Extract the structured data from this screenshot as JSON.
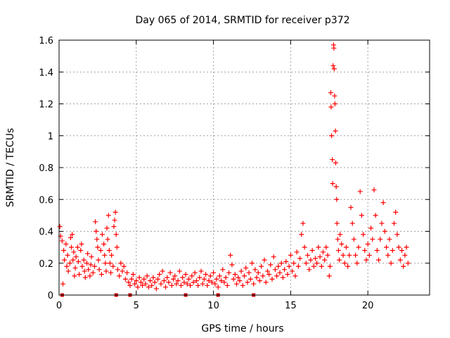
{
  "colors": {
    "series": "#ff0000",
    "zero_series": "#cc0000"
  },
  "chart_data": {
    "type": "scatter",
    "title": "Day 065 of 2014, SRMTID for receiver p372",
    "xlabel": "GPS time / hours",
    "ylabel": "SRMTID / TECUs",
    "xlim": [
      0,
      24
    ],
    "ylim": [
      0,
      1.6
    ],
    "x_ticks": [
      0,
      5,
      10,
      15,
      20
    ],
    "x_tick_labels": [
      "0",
      "5",
      "10",
      "15",
      "20"
    ],
    "y_ticks": [
      0,
      0.2,
      0.4,
      0.6,
      0.8,
      1.0,
      1.2,
      1.4,
      1.6
    ],
    "y_tick_labels": [
      "0",
      "0.2",
      "0.4",
      "0.6",
      "0.8",
      "1",
      "1.2",
      "1.4",
      "1.6"
    ],
    "grid": true,
    "marker": "plus",
    "series": [
      {
        "name": "SRMTID",
        "points": [
          [
            0.05,
            0.43
          ],
          [
            0.1,
            0.37
          ],
          [
            0.2,
            0.34
          ],
          [
            0.25,
            0.07
          ],
          [
            0.3,
            0.28
          ],
          [
            0.35,
            0.22
          ],
          [
            0.45,
            0.32
          ],
          [
            0.5,
            0.18
          ],
          [
            0.55,
            0.25
          ],
          [
            0.6,
            0.15
          ],
          [
            0.7,
            0.2
          ],
          [
            0.75,
            0.36
          ],
          [
            0.8,
            0.3
          ],
          [
            0.85,
            0.38
          ],
          [
            0.9,
            0.22
          ],
          [
            0.95,
            0.27
          ],
          [
            1.0,
            0.12
          ],
          [
            1.05,
            0.17
          ],
          [
            1.1,
            0.24
          ],
          [
            1.2,
            0.3
          ],
          [
            1.25,
            0.21
          ],
          [
            1.3,
            0.13
          ],
          [
            1.4,
            0.28
          ],
          [
            1.45,
            0.32
          ],
          [
            1.5,
            0.18
          ],
          [
            1.6,
            0.22
          ],
          [
            1.65,
            0.15
          ],
          [
            1.7,
            0.11
          ],
          [
            1.8,
            0.2
          ],
          [
            1.85,
            0.26
          ],
          [
            1.9,
            0.16
          ],
          [
            2.0,
            0.12
          ],
          [
            2.05,
            0.19
          ],
          [
            2.1,
            0.24
          ],
          [
            2.2,
            0.14
          ],
          [
            2.3,
            0.18
          ],
          [
            2.35,
            0.46
          ],
          [
            2.4,
            0.4
          ],
          [
            2.45,
            0.35
          ],
          [
            2.5,
            0.3
          ],
          [
            2.55,
            0.22
          ],
          [
            2.6,
            0.16
          ],
          [
            2.7,
            0.28
          ],
          [
            2.75,
            0.13
          ],
          [
            2.8,
            0.38
          ],
          [
            2.9,
            0.32
          ],
          [
            2.95,
            0.25
          ],
          [
            3.0,
            0.2
          ],
          [
            3.05,
            0.15
          ],
          [
            3.1,
            0.42
          ],
          [
            3.15,
            0.35
          ],
          [
            3.2,
            0.5
          ],
          [
            3.25,
            0.28
          ],
          [
            3.3,
            0.2
          ],
          [
            3.35,
            0.14
          ],
          [
            3.4,
            0.25
          ],
          [
            3.5,
            0.18
          ],
          [
            3.55,
            0.43
          ],
          [
            3.6,
            0.47
          ],
          [
            3.65,
            0.52
          ],
          [
            3.7,
            0.38
          ],
          [
            3.75,
            0.3
          ],
          [
            3.8,
            0.16
          ],
          [
            3.9,
            0.12
          ],
          [
            4.0,
            0.2
          ],
          [
            4.1,
            0.15
          ],
          [
            4.2,
            0.18
          ],
          [
            4.3,
            0.1
          ],
          [
            4.4,
            0.14
          ],
          [
            4.5,
            0.08
          ],
          [
            4.6,
            0.06
          ],
          [
            4.7,
            0.1
          ],
          [
            4.8,
            0.13
          ],
          [
            4.9,
            0.07
          ],
          [
            5.0,
            0.09
          ],
          [
            5.1,
            0.05
          ],
          [
            5.2,
            0.11
          ],
          [
            5.3,
            0.08
          ],
          [
            5.4,
            0.06
          ],
          [
            5.5,
            0.1
          ],
          [
            5.6,
            0.07
          ],
          [
            5.7,
            0.12
          ],
          [
            5.8,
            0.05
          ],
          [
            5.9,
            0.09
          ],
          [
            6.0,
            0.06
          ],
          [
            6.1,
            0.11
          ],
          [
            6.2,
            0.08
          ],
          [
            6.3,
            0.04
          ],
          [
            6.4,
            0.1
          ],
          [
            6.5,
            0.13
          ],
          [
            6.6,
            0.07
          ],
          [
            6.7,
            0.15
          ],
          [
            6.8,
            0.09
          ],
          [
            6.9,
            0.05
          ],
          [
            7.0,
            0.11
          ],
          [
            7.1,
            0.08
          ],
          [
            7.2,
            0.14
          ],
          [
            7.3,
            0.06
          ],
          [
            7.4,
            0.1
          ],
          [
            7.5,
            0.12
          ],
          [
            7.6,
            0.07
          ],
          [
            7.7,
            0.09
          ],
          [
            7.8,
            0.15
          ],
          [
            7.9,
            0.06
          ],
          [
            8.0,
            0.11
          ],
          [
            8.1,
            0.08
          ],
          [
            8.2,
            0.13
          ],
          [
            8.3,
            0.07
          ],
          [
            8.4,
            0.1
          ],
          [
            8.5,
            0.06
          ],
          [
            8.6,
            0.12
          ],
          [
            8.7,
            0.08
          ],
          [
            8.8,
            0.14
          ],
          [
            8.9,
            0.09
          ],
          [
            9.0,
            0.06
          ],
          [
            9.1,
            0.11
          ],
          [
            9.2,
            0.15
          ],
          [
            9.3,
            0.07
          ],
          [
            9.4,
            0.1
          ],
          [
            9.5,
            0.13
          ],
          [
            9.6,
            0.06
          ],
          [
            9.7,
            0.09
          ],
          [
            9.8,
            0.12
          ],
          [
            9.9,
            0.08
          ],
          [
            10.0,
            0.14
          ],
          [
            10.1,
            0.07
          ],
          [
            10.2,
            0.1
          ],
          [
            10.3,
            0.05
          ],
          [
            10.4,
            0.12
          ],
          [
            10.5,
            0.09
          ],
          [
            10.6,
            0.16
          ],
          [
            10.7,
            0.08
          ],
          [
            10.8,
            0.11
          ],
          [
            10.9,
            0.06
          ],
          [
            11.0,
            0.14
          ],
          [
            11.1,
            0.25
          ],
          [
            11.2,
            0.19
          ],
          [
            11.3,
            0.1
          ],
          [
            11.4,
            0.13
          ],
          [
            11.5,
            0.07
          ],
          [
            11.6,
            0.11
          ],
          [
            11.7,
            0.09
          ],
          [
            11.8,
            0.15
          ],
          [
            11.9,
            0.06
          ],
          [
            12.0,
            0.12
          ],
          [
            12.1,
            0.17
          ],
          [
            12.2,
            0.08
          ],
          [
            12.3,
            0.14
          ],
          [
            12.4,
            0.1
          ],
          [
            12.5,
            0.2
          ],
          [
            12.6,
            0.07
          ],
          [
            12.7,
            0.16
          ],
          [
            12.8,
            0.11
          ],
          [
            12.9,
            0.14
          ],
          [
            13.0,
            0.09
          ],
          [
            13.1,
            0.18
          ],
          [
            13.2,
            0.12
          ],
          [
            13.3,
            0.22
          ],
          [
            13.4,
            0.08
          ],
          [
            13.5,
            0.15
          ],
          [
            13.6,
            0.13
          ],
          [
            13.7,
            0.19
          ],
          [
            13.8,
            0.1
          ],
          [
            13.9,
            0.24
          ],
          [
            14.0,
            0.16
          ],
          [
            14.1,
            0.12
          ],
          [
            14.2,
            0.18
          ],
          [
            14.3,
            0.14
          ],
          [
            14.4,
            0.2
          ],
          [
            14.5,
            0.11
          ],
          [
            14.6,
            0.16
          ],
          [
            14.7,
            0.21
          ],
          [
            14.8,
            0.13
          ],
          [
            14.9,
            0.18
          ],
          [
            15.0,
            0.25
          ],
          [
            15.1,
            0.15
          ],
          [
            15.2,
            0.2
          ],
          [
            15.3,
            0.12
          ],
          [
            15.4,
            0.27
          ],
          [
            15.5,
            0.18
          ],
          [
            15.6,
            0.23
          ],
          [
            15.7,
            0.38
          ],
          [
            15.8,
            0.45
          ],
          [
            15.9,
            0.3
          ],
          [
            16.0,
            0.2
          ],
          [
            16.1,
            0.25
          ],
          [
            16.2,
            0.16
          ],
          [
            16.3,
            0.22
          ],
          [
            16.4,
            0.28
          ],
          [
            16.5,
            0.18
          ],
          [
            16.6,
            0.23
          ],
          [
            16.7,
            0.2
          ],
          [
            16.8,
            0.3
          ],
          [
            16.9,
            0.24
          ],
          [
            17.0,
            0.18
          ],
          [
            17.1,
            0.27
          ],
          [
            17.2,
            0.22
          ],
          [
            17.3,
            0.3
          ],
          [
            17.4,
            0.25
          ],
          [
            17.5,
            0.12
          ],
          [
            17.55,
            0.18
          ],
          [
            17.6,
            1.27
          ],
          [
            17.62,
            1.18
          ],
          [
            17.65,
            1.0
          ],
          [
            17.7,
            0.85
          ],
          [
            17.72,
            0.7
          ],
          [
            17.75,
            1.44
          ],
          [
            17.78,
            1.57
          ],
          [
            17.8,
            1.55
          ],
          [
            17.82,
            1.42
          ],
          [
            17.85,
            1.25
          ],
          [
            17.87,
            1.2
          ],
          [
            17.9,
            1.03
          ],
          [
            17.92,
            0.83
          ],
          [
            17.95,
            0.68
          ],
          [
            17.98,
            0.6
          ],
          [
            18.0,
            0.45
          ],
          [
            18.05,
            0.35
          ],
          [
            18.1,
            0.28
          ],
          [
            18.15,
            0.22
          ],
          [
            18.2,
            0.38
          ],
          [
            18.3,
            0.32
          ],
          [
            18.4,
            0.25
          ],
          [
            18.5,
            0.2
          ],
          [
            18.6,
            0.3
          ],
          [
            18.7,
            0.18
          ],
          [
            18.8,
            0.25
          ],
          [
            18.9,
            0.55
          ],
          [
            19.0,
            0.45
          ],
          [
            19.1,
            0.35
          ],
          [
            19.2,
            0.25
          ],
          [
            19.3,
            0.2
          ],
          [
            19.4,
            0.3
          ],
          [
            19.5,
            0.65
          ],
          [
            19.6,
            0.5
          ],
          [
            19.7,
            0.38
          ],
          [
            19.8,
            0.28
          ],
          [
            19.9,
            0.22
          ],
          [
            20.0,
            0.32
          ],
          [
            20.1,
            0.25
          ],
          [
            20.2,
            0.42
          ],
          [
            20.3,
            0.35
          ],
          [
            20.4,
            0.66
          ],
          [
            20.5,
            0.5
          ],
          [
            20.6,
            0.28
          ],
          [
            20.7,
            0.22
          ],
          [
            20.8,
            0.35
          ],
          [
            20.9,
            0.45
          ],
          [
            21.0,
            0.58
          ],
          [
            21.1,
            0.4
          ],
          [
            21.2,
            0.3
          ],
          [
            21.3,
            0.25
          ],
          [
            21.4,
            0.35
          ],
          [
            21.5,
            0.2
          ],
          [
            21.6,
            0.28
          ],
          [
            21.7,
            0.45
          ],
          [
            21.8,
            0.52
          ],
          [
            21.9,
            0.38
          ],
          [
            22.0,
            0.3
          ],
          [
            22.1,
            0.22
          ],
          [
            22.2,
            0.28
          ],
          [
            22.3,
            0.18
          ],
          [
            22.4,
            0.25
          ],
          [
            22.5,
            0.3
          ],
          [
            22.6,
            0.2
          ]
        ]
      },
      {
        "name": "zero-level",
        "points": [
          [
            0.2,
            0.0
          ],
          [
            3.7,
            0.0
          ],
          [
            4.6,
            0.0
          ],
          [
            8.2,
            0.0
          ],
          [
            10.3,
            0.0
          ],
          [
            12.6,
            0.0
          ]
        ]
      }
    ]
  }
}
